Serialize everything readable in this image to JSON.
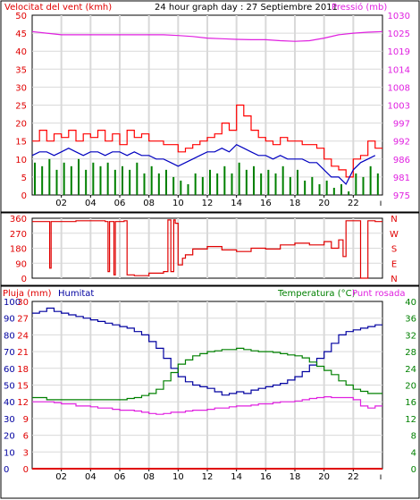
{
  "colors": {
    "frame": "#000000",
    "grid": "#d9d9d9",
    "wind_speed": "#ff0000",
    "wind_avg": "#0000c0",
    "wind_gust_low": "#008000",
    "pressure": "#e020e0",
    "wind_dir": "#e00000",
    "rain": "#e00000",
    "humidity": "#0000a0",
    "temperature": "#008000",
    "dewpoint": "#e020e0"
  },
  "chart_data": [
    {
      "id": "wind",
      "type": "line",
      "title": "24 hour graph day : 27 Septiembre 2011",
      "left_axis_label": "Velocitat del vent (kmh)",
      "right_axis_label": "Pressió (mb)",
      "left_ticks": [
        "50",
        "45",
        "40",
        "35",
        "30",
        "25",
        "20",
        "15",
        "10",
        "5",
        "0"
      ],
      "right_ticks": [
        "1030",
        "1025",
        "1019",
        "1014",
        "1008",
        "1003",
        "997",
        "992",
        "986",
        "981",
        "975"
      ],
      "ylim_left": [
        0,
        50
      ],
      "ylim_right": [
        975,
        1030
      ],
      "x_ticks": [
        "02",
        "04",
        "06",
        "08",
        "10",
        "12",
        "14",
        "16",
        "18",
        "20",
        "22"
      ],
      "xlim": [
        0,
        24
      ],
      "grid": true,
      "series": [
        {
          "key": "gust",
          "color_key": "wind_speed",
          "x": [
            0,
            0.5,
            1,
            1.5,
            2,
            2.5,
            3,
            3.5,
            4,
            4.5,
            5,
            5.5,
            6,
            6.5,
            7,
            7.5,
            8,
            8.5,
            9,
            9.5,
            10,
            10.5,
            11,
            11.5,
            12,
            12.5,
            13,
            13.5,
            14,
            14.5,
            15,
            15.5,
            16,
            16.5,
            17,
            17.5,
            18,
            18.5,
            19,
            19.5,
            20,
            20.5,
            21,
            21.5,
            22,
            22.5,
            23,
            23.5
          ],
          "y": [
            15,
            18,
            15,
            17,
            16,
            18,
            15,
            17,
            16,
            18,
            15,
            17,
            14,
            18,
            16,
            17,
            15,
            15,
            14,
            14,
            12,
            13,
            14,
            15,
            16,
            17,
            20,
            18,
            25,
            22,
            18,
            16,
            15,
            14,
            16,
            15,
            15,
            14,
            14,
            13,
            10,
            8,
            7,
            5,
            10,
            11,
            15,
            13
          ]
        },
        {
          "key": "avg",
          "color_key": "wind_avg",
          "x": [
            0,
            0.5,
            1,
            1.5,
            2,
            2.5,
            3,
            3.5,
            4,
            4.5,
            5,
            5.5,
            6,
            6.5,
            7,
            7.5,
            8,
            8.5,
            9,
            9.5,
            10,
            10.5,
            11,
            11.5,
            12,
            12.5,
            13,
            13.5,
            14,
            14.5,
            15,
            15.5,
            16,
            16.5,
            17,
            17.5,
            18,
            18.5,
            19,
            19.5,
            20,
            20.5,
            21,
            21.5,
            22,
            22.5,
            23,
            23.5
          ],
          "y": [
            11,
            12,
            12,
            11,
            12,
            13,
            12,
            11,
            12,
            12,
            11,
            12,
            12,
            11,
            12,
            11,
            11,
            10,
            10,
            9,
            8,
            9,
            10,
            11,
            12,
            12,
            13,
            12,
            14,
            13,
            12,
            11,
            11,
            10,
            11,
            10,
            10,
            10,
            9,
            9,
            7,
            5,
            5,
            3,
            7,
            9,
            10,
            11
          ]
        },
        {
          "key": "low",
          "color_key": "wind_gust_low",
          "x": [
            0,
            0.5,
            1,
            1.5,
            2,
            2.5,
            3,
            3.5,
            4,
            4.5,
            5,
            5.5,
            6,
            6.5,
            7,
            7.5,
            8,
            8.5,
            9,
            9.5,
            10,
            10.5,
            11,
            11.5,
            12,
            12.5,
            13,
            13.5,
            14,
            14.5,
            15,
            15.5,
            16,
            16.5,
            17,
            17.5,
            18,
            18.5,
            19,
            19.5,
            20,
            20.5,
            21,
            21.5,
            22,
            22.5,
            23,
            23.5
          ],
          "y": [
            9,
            8,
            10,
            7,
            9,
            8,
            10,
            7,
            9,
            8,
            9,
            7,
            8,
            7,
            9,
            6,
            8,
            6,
            7,
            5,
            4,
            3,
            6,
            5,
            7,
            6,
            8,
            6,
            9,
            7,
            8,
            6,
            7,
            6,
            8,
            5,
            7,
            4,
            5,
            3,
            4,
            2,
            3,
            1,
            6,
            5,
            8,
            6
          ]
        },
        {
          "key": "pressure",
          "color_key": "pressure",
          "axis": "right",
          "x": [
            0,
            1,
            2,
            3,
            4,
            5,
            6,
            7,
            8,
            9,
            10,
            11,
            12,
            13,
            14,
            15,
            16,
            17,
            18,
            19,
            20,
            21,
            22,
            23,
            24
          ],
          "y": [
            1025,
            1024.5,
            1024,
            1024,
            1024,
            1024,
            1024,
            1024,
            1024,
            1024,
            1023.8,
            1023.5,
            1023,
            1022.8,
            1022.6,
            1022.5,
            1022.5,
            1022.2,
            1022,
            1022.2,
            1023,
            1024,
            1024.5,
            1024.8,
            1025
          ]
        }
      ]
    },
    {
      "id": "direction",
      "type": "line",
      "left_ticks": [
        "360",
        "270",
        "180",
        "90",
        "0"
      ],
      "right_ticks": [
        "N",
        "W",
        "S",
        "E",
        "N"
      ],
      "ylim": [
        0,
        360
      ],
      "xlim": [
        0,
        24
      ],
      "grid": true,
      "series": [
        {
          "key": "dir",
          "color_key": "wind_dir",
          "x": [
            0,
            1,
            1.2,
            1.3,
            2,
            3,
            4,
            4.5,
            5,
            5.2,
            5.3,
            5.6,
            5.7,
            6,
            6.3,
            6.5,
            7,
            8,
            9,
            9.3,
            9.5,
            9.7,
            9.8,
            10,
            10.3,
            10.5,
            11,
            12,
            13,
            14,
            15,
            16,
            17,
            18,
            19,
            20,
            20.5,
            21,
            21.3,
            21.5,
            22,
            22.5,
            23,
            23.5
          ],
          "y": [
            340,
            340,
            60,
            340,
            340,
            345,
            345,
            345,
            340,
            40,
            340,
            20,
            340,
            340,
            345,
            20,
            15,
            30,
            40,
            350,
            40,
            350,
            330,
            80,
            120,
            140,
            175,
            190,
            170,
            160,
            180,
            175,
            200,
            210,
            200,
            220,
            180,
            230,
            130,
            345,
            345,
            0,
            345,
            340
          ]
        }
      ]
    },
    {
      "id": "climate",
      "type": "line",
      "rain_label": "Pluja (mm)",
      "humidity_label": "Humitat",
      "temp_label": "Temperatura (°C)",
      "dew_label": "Punt rosada",
      "rain_ticks": [
        "30",
        "27",
        "24",
        "21",
        "18",
        "15",
        "12",
        "9",
        "6",
        "3",
        "0"
      ],
      "humidity_ticks": [
        "100",
        "90",
        "80",
        "70",
        "60",
        "50",
        "40",
        "30",
        "20",
        "10",
        "0"
      ],
      "temp_ticks": [
        "40",
        "36",
        "32",
        "28",
        "24",
        "20",
        "16",
        "12",
        "8",
        "4",
        "0"
      ],
      "ylim_humidity": [
        0,
        100
      ],
      "ylim_temp": [
        0,
        40
      ],
      "xlim": [
        0,
        24
      ],
      "grid": true,
      "series": [
        {
          "key": "humidity",
          "color_key": "humidity",
          "x": [
            0,
            0.5,
            1,
            1.5,
            2,
            2.5,
            3,
            3.5,
            4,
            4.5,
            5,
            5.5,
            6,
            6.5,
            7,
            7.5,
            8,
            8.5,
            9,
            9.5,
            10,
            10.5,
            11,
            11.5,
            12,
            12.5,
            13,
            13.5,
            14,
            14.5,
            15,
            15.5,
            16,
            16.5,
            17,
            17.5,
            18,
            18.5,
            19,
            19.5,
            20,
            20.5,
            21,
            21.5,
            22,
            22.5,
            23,
            23.5
          ],
          "y": [
            93,
            94,
            96,
            94,
            93,
            92,
            91,
            90,
            89,
            88,
            87,
            86,
            85,
            84,
            82,
            80,
            76,
            72,
            66,
            60,
            55,
            52,
            50,
            49,
            48,
            46,
            44,
            45,
            46,
            45,
            47,
            48,
            49,
            50,
            51,
            53,
            55,
            58,
            62,
            66,
            70,
            75,
            80,
            82,
            83,
            84,
            85,
            86
          ]
        },
        {
          "key": "temperature",
          "color_key": "temperature",
          "axis": "temp",
          "x": [
            0,
            0.5,
            1,
            1.5,
            2,
            2.5,
            3,
            3.5,
            4,
            4.5,
            5,
            5.5,
            6,
            6.5,
            7,
            7.5,
            8,
            8.5,
            9,
            9.5,
            10,
            10.5,
            11,
            11.5,
            12,
            12.5,
            13,
            13.5,
            14,
            14.5,
            15,
            15.5,
            16,
            16.5,
            17,
            17.5,
            18,
            18.5,
            19,
            19.5,
            20,
            20.5,
            21,
            21.5,
            22,
            22.5,
            23,
            23.5
          ],
          "y": [
            17,
            17,
            16.5,
            16.5,
            16.5,
            16.5,
            16.5,
            16.5,
            16.5,
            16.5,
            16.5,
            16.5,
            16.5,
            16.8,
            17,
            17.5,
            18,
            19,
            21,
            23,
            25,
            26,
            27,
            27.5,
            28,
            28.2,
            28.5,
            28.5,
            28.8,
            28.5,
            28.2,
            28,
            28,
            27.8,
            27.5,
            27.2,
            27,
            26.5,
            25.5,
            24.5,
            23.5,
            22.5,
            21,
            20,
            19,
            18.5,
            18,
            18
          ]
        },
        {
          "key": "dewpoint",
          "color_key": "dewpoint",
          "axis": "temp",
          "x": [
            0,
            0.5,
            1,
            1.5,
            2,
            2.5,
            3,
            3.5,
            4,
            4.5,
            5,
            5.5,
            6,
            6.5,
            7,
            7.5,
            8,
            8.5,
            9,
            9.5,
            10,
            10.5,
            11,
            11.5,
            12,
            12.5,
            13,
            13.5,
            14,
            14.5,
            15,
            15.5,
            16,
            16.5,
            17,
            17.5,
            18,
            18.5,
            19,
            19.5,
            20,
            20.5,
            21,
            21.5,
            22,
            22.5,
            23,
            23.5
          ],
          "y": [
            16,
            16,
            16,
            15.8,
            15.5,
            15.5,
            15,
            15,
            14.8,
            14.5,
            14.5,
            14.2,
            14,
            14,
            13.8,
            13.5,
            13.2,
            13,
            13.2,
            13.5,
            13.5,
            13.8,
            14,
            14,
            14.2,
            14.5,
            14.5,
            14.8,
            15,
            15,
            15.2,
            15.5,
            15.5,
            15.8,
            16,
            16,
            16.2,
            16.5,
            16.8,
            17,
            17.2,
            17,
            17,
            17,
            16.5,
            15,
            14.5,
            15
          ]
        },
        {
          "key": "rain",
          "color_key": "rain",
          "axis": "rain",
          "x": [
            0,
            24
          ],
          "y": [
            0,
            0
          ]
        }
      ]
    }
  ]
}
